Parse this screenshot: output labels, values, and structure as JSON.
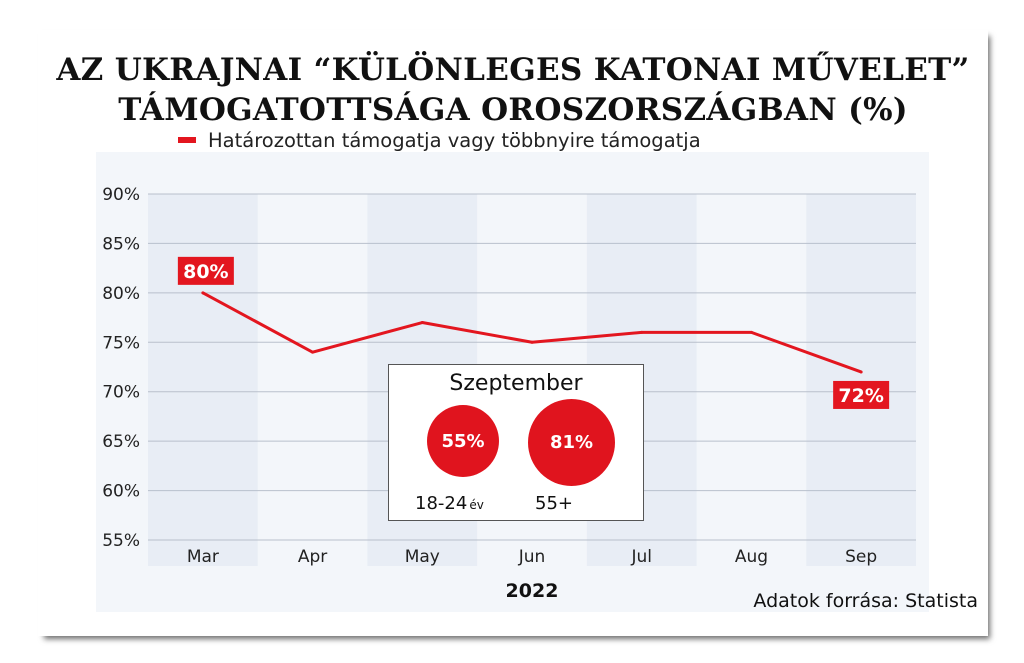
{
  "title_lines": [
    "AZ UKRAJNAI “KÜLÖNLEGES KATONAI MŰVELET”",
    "TÁMOGATOTTSÁGA OROSZORSZÁGBAN (%)"
  ],
  "source": "Adatok forrása: Statista",
  "colors": {
    "series": "#e3161f",
    "band": "#e8edf5",
    "plot_bg": "#f3f6fa",
    "grid": "#b9c0cc"
  },
  "chart_data": {
    "type": "line",
    "title": "AZ UKRAJNAI “KÜLÖNLEGES KATONAI MŰVELET” TÁMOGATOTTSÁGA OROSZORSZÁGBAN (%)",
    "categories": [
      "Mar",
      "Apr",
      "May",
      "Jun",
      "Jul",
      "Aug",
      "Sep"
    ],
    "series": [
      {
        "name": "Határozottan támogatja vagy többnyire támogatja",
        "values": [
          80,
          74,
          77,
          75,
          76,
          76,
          72
        ]
      }
    ],
    "ylim": [
      55,
      90
    ],
    "yticks": [
      "90%",
      "85%",
      "80%",
      "75%",
      "70%",
      "65%",
      "60%",
      "55%"
    ],
    "ytick_values": [
      90,
      85,
      80,
      75,
      70,
      65,
      60,
      55
    ],
    "xlabel": "2022",
    "ylabel": "",
    "data_labels": [
      {
        "index": 0,
        "text": "80%"
      },
      {
        "index": 6,
        "text": "72%"
      }
    ],
    "grid": true,
    "legend": "top"
  },
  "inset": {
    "title": "Szeptember",
    "bubbles": [
      {
        "value": 55,
        "text": "55%",
        "label": "18-24",
        "unit": "év"
      },
      {
        "value": 81,
        "text": "81%",
        "label": "55+",
        "unit": ""
      }
    ]
  }
}
